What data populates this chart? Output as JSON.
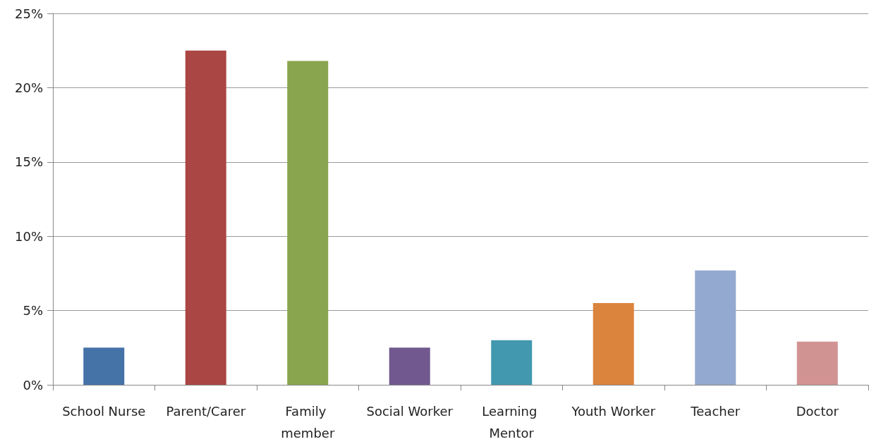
{
  "chart_data": {
    "type": "bar",
    "categories": [
      "School Nurse",
      "Parent/Carer",
      "Family member",
      "Social Worker",
      "Learning Mentor",
      "Youth Worker",
      "Teacher",
      "Doctor"
    ],
    "values": [
      2.5,
      22.5,
      21.8,
      2.5,
      3.0,
      5.5,
      7.7,
      2.9
    ],
    "colors": [
      "#4572a7",
      "#aa4643",
      "#89a54e",
      "#71588f",
      "#4198af",
      "#db843d",
      "#93a9cf",
      "#d19392"
    ],
    "ylim": [
      0,
      25
    ],
    "yticks": [
      {
        "value": 0,
        "label": "0%"
      },
      {
        "value": 5,
        "label": "5%"
      },
      {
        "value": 10,
        "label": "10%"
      },
      {
        "value": 15,
        "label": "15%"
      },
      {
        "value": 20,
        "label": "20%"
      },
      {
        "value": 25,
        "label": "25%"
      }
    ],
    "grid": "y"
  }
}
